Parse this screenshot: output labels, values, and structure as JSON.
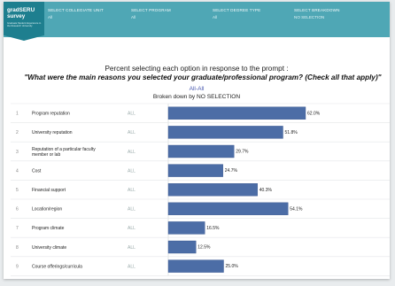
{
  "header": {
    "brand_name": "gradSERU survey",
    "brand_sub": "Graduate Student Experience in the Research University",
    "selectors": [
      {
        "label": "SELECT COLLEGIATE UNIT",
        "value": "All"
      },
      {
        "label": "SELECT PROGRAM",
        "value": "All"
      },
      {
        "label": "SELECT DEGREE TYPE",
        "value": "All"
      },
      {
        "label": "SELECT BREAKDOWN",
        "value": "NO SELECTION"
      }
    ]
  },
  "chart_data": {
    "type": "bar",
    "orientation": "horizontal",
    "title": "Percent selecting each option in response to the prompt :",
    "question": "\"What were the main reasons you selected your graduate/professional program? (Check all that apply)\"",
    "subtitle": "All-All",
    "breakdown_label": "Broken down by NO SELECTION",
    "group": "ALL",
    "rows": [
      {
        "index": "1",
        "label": "Program reputation",
        "value": 62.0,
        "display": "62.0%"
      },
      {
        "index": "2",
        "label": "University reputation",
        "value": 51.8,
        "display": "51.8%"
      },
      {
        "index": "3",
        "label": "Reputation of a particular faculty member or lab",
        "label_lines": [
          "Reputation of a particular faculty",
          "member or lab"
        ],
        "value": 29.7,
        "display": "29.7%"
      },
      {
        "index": "4",
        "label": "Cost",
        "value": 24.7,
        "display": "24.7%"
      },
      {
        "index": "5",
        "label": "Financial support",
        "value": 40.3,
        "display": "40.3%"
      },
      {
        "index": "6",
        "label": "Location/region",
        "value": 54.1,
        "display": "54.1%"
      },
      {
        "index": "7",
        "label": "Program climate",
        "value": 16.5,
        "display": "16.5%"
      },
      {
        "index": "8",
        "label": "University climate",
        "value": 12.5,
        "display": "12.5%"
      },
      {
        "index": "9",
        "label": "Course offerings/curricula",
        "value": 25.0,
        "display": "25.0%"
      }
    ],
    "bar_color": "#4c6da6",
    "xlim": [
      0,
      100
    ]
  }
}
